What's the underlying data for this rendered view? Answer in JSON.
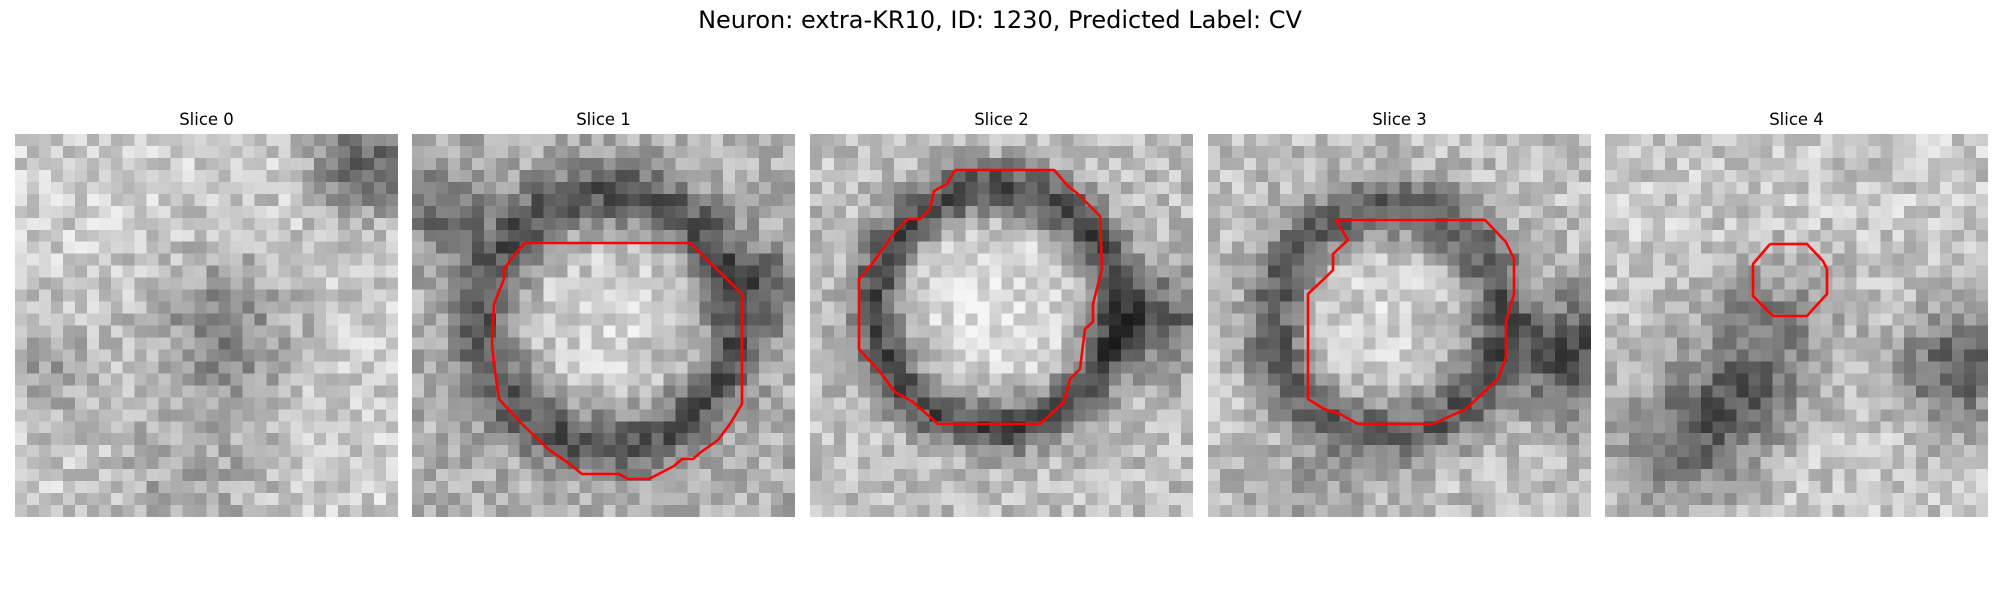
{
  "figure": {
    "title": "Neuron: extra-KR10, ID: 1230, Predicted Label: CV",
    "contour_color": "#ff0000",
    "colormap": "gray"
  },
  "panels": [
    {
      "title": "Slice 0",
      "has_contour": false
    },
    {
      "title": "Slice 1",
      "has_contour": true
    },
    {
      "title": "Slice 2",
      "has_contour": true
    },
    {
      "title": "Slice 3",
      "has_contour": true
    },
    {
      "title": "Slice 4",
      "has_contour": true
    }
  ]
}
